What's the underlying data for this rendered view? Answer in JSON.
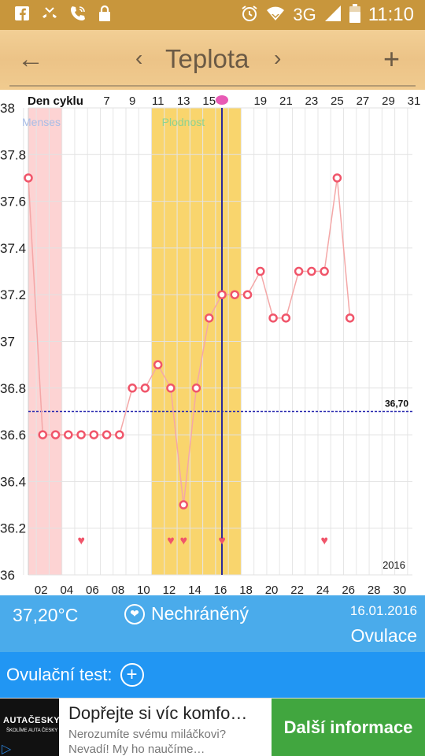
{
  "status_bar": {
    "icons_left": [
      "facebook-icon",
      "missed-call-icon",
      "phone-icon",
      "lock-icon"
    ],
    "icons_right": [
      "alarm-icon",
      "wifi-icon",
      "signal-icon",
      "battery-icon"
    ],
    "network": "3G",
    "time": "11:10"
  },
  "app_bar": {
    "title": "Teplota",
    "back_icon": "←",
    "prev_icon": "‹",
    "next_icon": "›",
    "add_icon": "+"
  },
  "chart": {
    "top_label": "Den cyklu",
    "top_ticks": [
      "7",
      "9",
      "11",
      "13",
      "15",
      "19",
      "21",
      "23",
      "25",
      "27",
      "29",
      "31"
    ],
    "bottom_ticks": [
      "02",
      "04",
      "06",
      "08",
      "10",
      "12",
      "14",
      "16",
      "18",
      "20",
      "22",
      "24",
      "26",
      "28",
      "30"
    ],
    "y_ticks": [
      "38",
      "37.8",
      "37.6",
      "37.4",
      "37.2",
      "37",
      "36.8",
      "36.6",
      "36.4",
      "36.2",
      "36"
    ],
    "menses_label": "Menses",
    "fertile_label": "Plodnost",
    "baseline_label": "36,70",
    "year_label": "2016"
  },
  "chart_data": {
    "type": "line",
    "x": [
      1,
      2,
      3,
      4,
      5,
      6,
      7,
      8,
      9,
      10,
      11,
      12,
      13,
      14,
      15,
      16,
      17,
      18,
      19,
      20,
      21,
      22,
      23,
      24,
      25,
      26
    ],
    "series": [
      {
        "values": [
          37.7,
          36.6,
          36.6,
          36.6,
          36.6,
          36.6,
          36.6,
          36.6,
          36.8,
          36.8,
          36.9,
          36.8,
          36.3,
          36.8,
          37.1,
          37.2,
          37.2,
          37.2,
          37.3,
          37.1,
          37.1,
          37.3,
          37.3,
          37.3,
          37.7,
          37.1
        ]
      }
    ],
    "ylim": [
      36,
      38
    ],
    "xlim": [
      1,
      31
    ],
    "baseline": 36.7,
    "menses_days": [
      1,
      3
    ],
    "fertile_days": [
      11,
      17
    ],
    "ovulation_day": 16,
    "intercourse_days": [
      5,
      12,
      13,
      16,
      24
    ],
    "colors": {
      "line": "#f4a7a7",
      "marker": "#f0556a",
      "menses": "#fdd3d3",
      "fertile": "#f9d56d",
      "ovulation_line": "#2b2a9a",
      "baseline": "#2a2ab0"
    },
    "grid": true
  },
  "info": {
    "temperature": "37,20°C",
    "status": "Nechráněný",
    "date": "16.01.2016",
    "phase": "Ovulace"
  },
  "test": {
    "label": "Ovulační test:"
  },
  "ad": {
    "logo": "AUTAČESKY",
    "logo_sub": "ŠKOLÍME AUTA ČESKY",
    "headline": "Dopřejte si víc komfo…",
    "body": "Nerozumíte svému miláčkovi? Nevadí! My ho naučíme…",
    "cta": "Další informace"
  }
}
